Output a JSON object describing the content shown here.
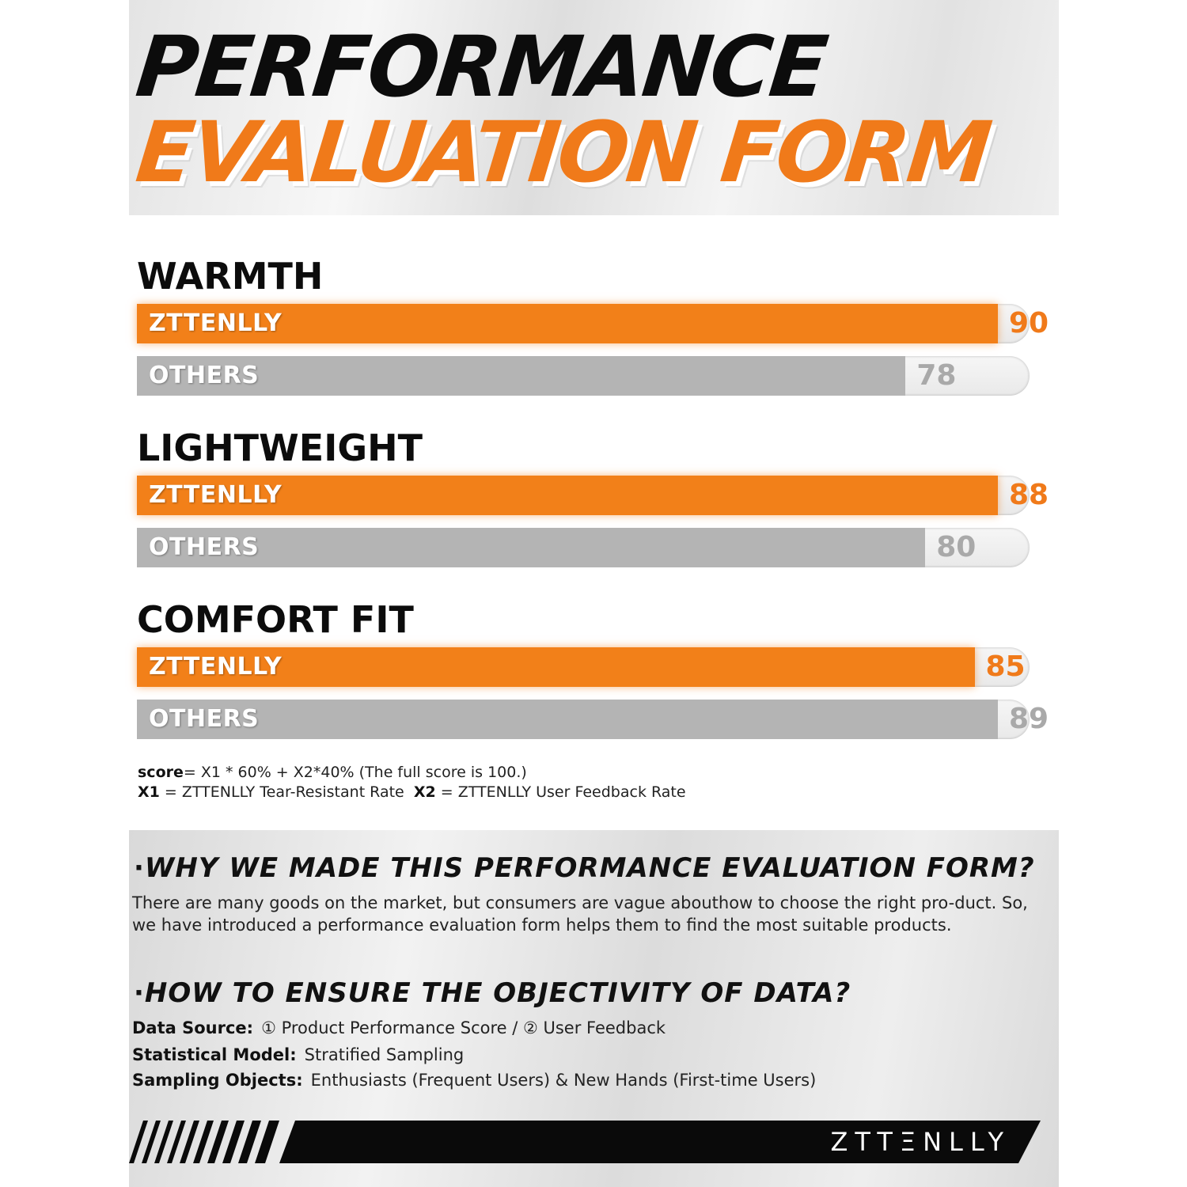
{
  "header": {
    "title_line1": "PERFORMANCE",
    "title_line2": "EVALUATION FORM"
  },
  "colors": {
    "brand": "#f28019",
    "others": "#b4b4b4",
    "track": "#ececec"
  },
  "chart_data": {
    "type": "bar",
    "orientation": "horizontal",
    "xlim": [
      0,
      100
    ],
    "series_names": [
      "ZTTENLLY",
      "OTHERS"
    ],
    "groups": [
      {
        "title": "WARMTH",
        "bars": [
          {
            "label": "ZTTENLLY",
            "value": 90
          },
          {
            "label": "OTHERS",
            "value": 78
          }
        ]
      },
      {
        "title": "LIGHTWEIGHT",
        "bars": [
          {
            "label": "ZTTENLLY",
            "value": 88
          },
          {
            "label": "OTHERS",
            "value": 80
          }
        ]
      },
      {
        "title": "COMFORT FIT",
        "bars": [
          {
            "label": "ZTTENLLY",
            "value": 85
          },
          {
            "label": "OTHERS",
            "value": 89
          }
        ]
      }
    ]
  },
  "formula": {
    "score_key": "score",
    "score_rest": "= X1 * 60% + X2*40%  (The full score is 100.)",
    "x1_key": "X1",
    "x1_rest": " = ZTTENLLY Tear-Resistant Rate ",
    "x2_key": "X2",
    "x2_rest": " = ZTTENLLY User Feedback Rate"
  },
  "info": {
    "q1_dot": "·",
    "q1_title": "WHY WE MADE THIS PERFORMANCE EVALUATION FORM?",
    "q1_text": "There are many goods on the market, but consumers are vague abouthow to choose the right pro-duct. So, we have introduced a performance evaluation form helps them to find the most suitable products.",
    "q2_dot": "·",
    "q2_title": "HOW TO ENSURE THE OBJECTIVITY OF DATA?",
    "data_source_key": "Data Source:",
    "data_source_val": "① Product Performance Score   /   ② User Feedback",
    "stat_model_key": "Statistical Model:",
    "stat_model_val": "Stratified Sampling",
    "sampling_key": "Sampling Objects:",
    "sampling_val": "Enthusiasts (Frequent Users) & New Hands (First-time Users)"
  },
  "footer": {
    "brand": "ZTTΞNLLY"
  }
}
